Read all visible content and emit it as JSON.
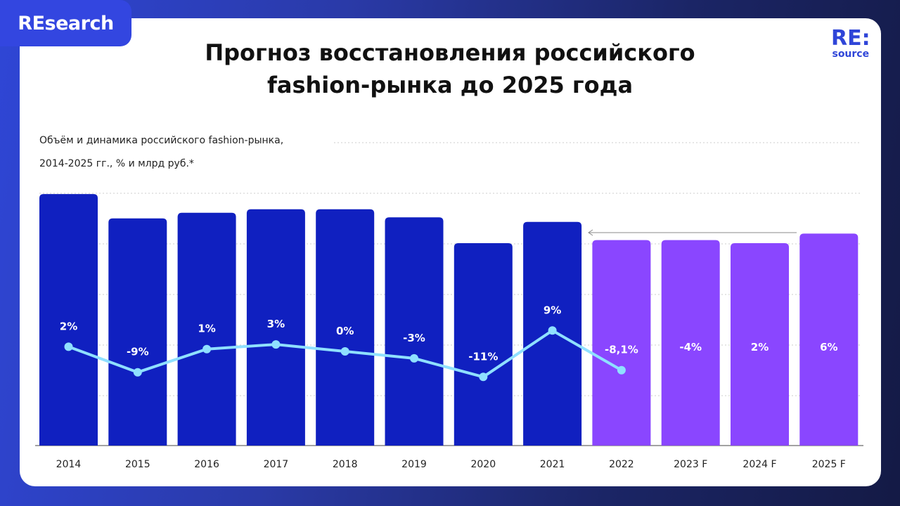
{
  "badge": "REsearch",
  "logo": {
    "top": "RE:",
    "bottom": "source"
  },
  "title_line1": "Прогноз восстановления российского",
  "title_line2": "fashion-рынка до 2025 года",
  "chart_data": {
    "type": "bar",
    "subtitle_line1": "Объём и динамика российского fashion-рынка,",
    "subtitle_line2": "2014-2025 гг., % и млрд руб.*",
    "categories": [
      "2014",
      "2015",
      "2016",
      "2017",
      "2018",
      "2019",
      "2020",
      "2021",
      "2022",
      "2023 F",
      "2024 F",
      "2025 F"
    ],
    "bar_values_relative": [
      4.97,
      4.49,
      4.6,
      4.67,
      4.67,
      4.51,
      4.0,
      4.42,
      4.06,
      4.06,
      4.0,
      4.19
    ],
    "ylim": [
      0,
      5
    ],
    "grid": "horizontal dotted",
    "colors": {
      "actual": "#1020c0",
      "forecast": "#8a46ff",
      "line": "#8fe0ff"
    },
    "forecast_from_index": 8,
    "growth_labels": [
      "2%",
      "-9%",
      "1%",
      "3%",
      "0%",
      "-3%",
      "-11%",
      "9%",
      "-8,1%",
      "-4%",
      "2%",
      "6%"
    ],
    "growth_values": [
      2,
      -9,
      1,
      3,
      0,
      -3,
      -11,
      9,
      -8.1,
      -4,
      2,
      6
    ],
    "line_points_count": 9
  }
}
